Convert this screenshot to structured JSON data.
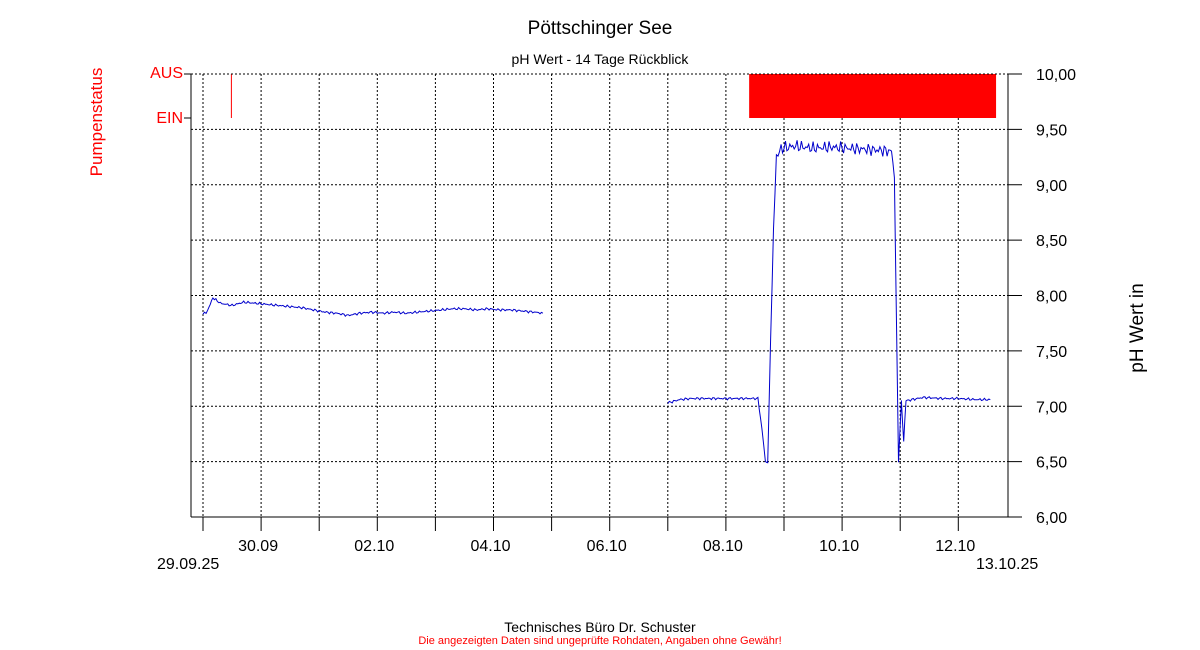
{
  "chart_data": {
    "type": "line",
    "title": "Pöttschinger See",
    "subtitle": "pH Wert - 14 Tage Rückblick",
    "ylabel": "pH Wert in",
    "y2label": "Pumpenstatus",
    "x_range": [
      "29.09.25",
      "13.10.25"
    ],
    "ylim": [
      6.0,
      10.0
    ],
    "y_ticks": [
      "6,00",
      "6,50",
      "7,00",
      "7,50",
      "8,00",
      "8,50",
      "9,00",
      "9,50",
      "10,00"
    ],
    "x_tick_labels": [
      "30.09",
      "02.10",
      "04.10",
      "06.10",
      "08.10",
      "10.10",
      "12.10"
    ],
    "range_start_label": "29.09.25",
    "range_end_label": "13.10.25",
    "pump_states": [
      "AUS",
      "EIN"
    ],
    "grid": true,
    "series": [
      {
        "name": "pH Wert",
        "color": "#0000cc",
        "segments": [
          [
            [
              0.0,
              7.83
            ],
            [
              0.08,
              7.86
            ],
            [
              0.17,
              7.98
            ],
            [
              0.3,
              7.93
            ],
            [
              0.5,
              7.91
            ],
            [
              0.7,
              7.94
            ],
            [
              0.9,
              7.93
            ],
            [
              1.1,
              7.92
            ],
            [
              1.3,
              7.91
            ],
            [
              1.5,
              7.9
            ],
            [
              1.7,
              7.89
            ],
            [
              1.9,
              7.87
            ],
            [
              2.1,
              7.85
            ],
            [
              2.3,
              7.84
            ],
            [
              2.5,
              7.82
            ],
            [
              2.7,
              7.84
            ],
            [
              2.9,
              7.85
            ],
            [
              3.1,
              7.84
            ],
            [
              3.3,
              7.85
            ],
            [
              3.5,
              7.84
            ],
            [
              3.7,
              7.85
            ],
            [
              3.9,
              7.86
            ],
            [
              4.1,
              7.87
            ],
            [
              4.3,
              7.88
            ],
            [
              4.5,
              7.88
            ],
            [
              4.7,
              7.87
            ],
            [
              4.9,
              7.88
            ],
            [
              5.1,
              7.87
            ],
            [
              5.3,
              7.87
            ],
            [
              5.5,
              7.86
            ],
            [
              5.7,
              7.85
            ],
            [
              5.85,
              7.84
            ]
          ],
          [
            [
              8.0,
              7.03
            ],
            [
              8.2,
              7.06
            ],
            [
              8.4,
              7.07
            ],
            [
              8.6,
              7.07
            ],
            [
              8.8,
              7.07
            ],
            [
              9.0,
              7.07
            ],
            [
              9.3,
              7.07
            ],
            [
              9.55,
              7.07
            ],
            [
              9.62,
              6.8
            ],
            [
              9.68,
              6.5
            ],
            [
              9.72,
              6.5
            ],
            [
              9.77,
              7.6
            ],
            [
              9.82,
              8.6
            ],
            [
              9.87,
              9.25
            ],
            [
              9.95,
              9.33
            ],
            [
              10.2,
              9.35
            ],
            [
              10.5,
              9.33
            ],
            [
              10.8,
              9.34
            ],
            [
              11.1,
              9.33
            ],
            [
              11.4,
              9.32
            ],
            [
              11.7,
              9.31
            ],
            [
              11.85,
              9.3
            ],
            [
              11.9,
              9.1
            ],
            [
              11.97,
              6.5
            ],
            [
              12.02,
              7.05
            ],
            [
              12.06,
              6.68
            ],
            [
              12.1,
              7.05
            ],
            [
              12.4,
              7.08
            ],
            [
              12.7,
              7.07
            ],
            [
              13.0,
              7.07
            ],
            [
              13.3,
              7.06
            ],
            [
              13.55,
              7.06
            ]
          ]
        ]
      },
      {
        "name": "Pumpenstatus",
        "color": "#ff0000",
        "pulses": [
          [
            0.48,
            0.485
          ]
        ],
        "aus_blocks": [
          [
            9.4,
            13.65
          ]
        ]
      }
    ]
  }
}
